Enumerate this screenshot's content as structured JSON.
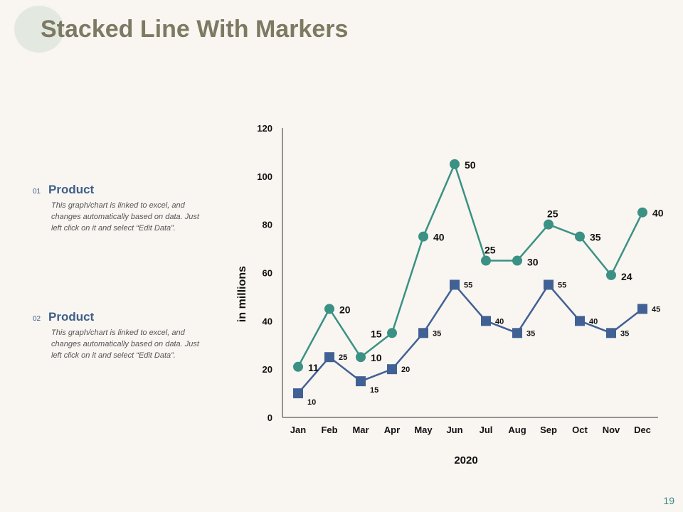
{
  "title": "Stacked Line With Markers",
  "page_number": "19",
  "legend": [
    {
      "num": "01",
      "label": "Product",
      "desc": "This graph/chart is linked to excel, and changes automatically based on data. Just left click on it and select “Edit Data”."
    },
    {
      "num": "02",
      "label": "Product",
      "desc": "This graph/chart is linked to excel, and changes automatically based on data. Just left click on it and select “Edit Data”."
    }
  ],
  "colors": {
    "series_top": "#3a9184",
    "series_bottom": "#416195"
  },
  "chart_data": {
    "type": "line",
    "stacked": true,
    "title": "",
    "xlabel": "2020",
    "ylabel": "in millions",
    "categories": [
      "Jan",
      "Feb",
      "Mar",
      "Apr",
      "May",
      "Jun",
      "Jul",
      "Aug",
      "Sep",
      "Oct",
      "Nov",
      "Dec"
    ],
    "ylim": [
      0,
      120
    ],
    "yticks": [
      0,
      20,
      40,
      60,
      80,
      100,
      120
    ],
    "series": [
      {
        "name": "Product 01",
        "marker": "square",
        "values": [
          10,
          25,
          15,
          20,
          35,
          55,
          40,
          35,
          55,
          40,
          35,
          45
        ]
      },
      {
        "name": "Product 02",
        "marker": "circle",
        "values": [
          11,
          20,
          10,
          15,
          40,
          50,
          25,
          30,
          25,
          35,
          24,
          40
        ]
      }
    ]
  }
}
